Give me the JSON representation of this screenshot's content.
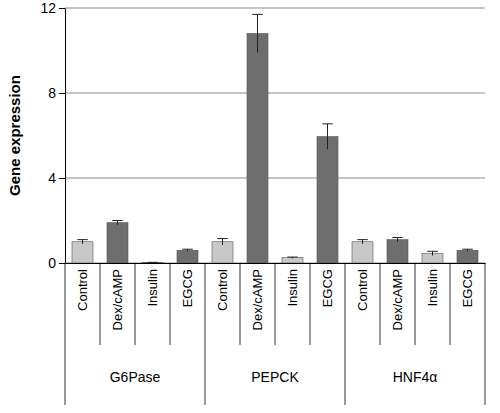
{
  "chart_data": {
    "type": "bar",
    "y_label": "Gene expression",
    "groups": [
      "G6Pase",
      "PEPCK",
      "HNF4α"
    ],
    "categories": [
      "Control",
      "Dex/cAMP",
      "Insulin",
      "EGCG",
      "Control",
      "Dex/cAMP",
      "Insulin",
      "EGCG",
      "Control",
      "Dex/cAMP",
      "Insulin",
      "EGCG"
    ],
    "values": [
      1.0,
      1.9,
      0.02,
      0.6,
      1.0,
      10.8,
      0.25,
      5.95,
      1.0,
      1.1,
      0.45,
      0.6
    ],
    "errors": [
      0.1,
      0.1,
      0.01,
      0.05,
      0.15,
      0.9,
      0.03,
      0.6,
      0.1,
      0.1,
      0.1,
      0.05
    ],
    "colors": [
      "#c8c8c8",
      "#6e6e6e",
      "#c8c8c8",
      "#6e6e6e",
      "#c8c8c8",
      "#6e6e6e",
      "#c8c8c8",
      "#6e6e6e",
      "#c8c8c8",
      "#6e6e6e",
      "#c8c8c8",
      "#6e6e6e"
    ],
    "ylim": [
      0,
      12
    ],
    "yticks": [
      0,
      4,
      8,
      12
    ],
    "grid": true
  }
}
